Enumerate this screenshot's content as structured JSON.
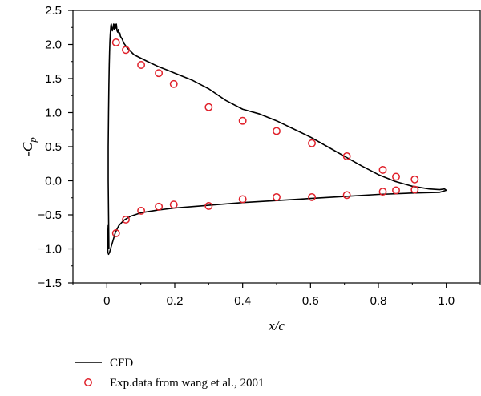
{
  "chart_data": {
    "type": "line",
    "xlabel": "x/c",
    "ylabel": "-C",
    "ylabel_subscript": "p",
    "xlim": [
      -0.1,
      1.1
    ],
    "ylim": [
      -1.5,
      2.5
    ],
    "xticks": [
      0,
      0.2,
      0.4,
      0.6,
      0.8,
      1.0
    ],
    "xtick_labels": [
      "0",
      "0.2",
      "0.4",
      "0.6",
      "0.8",
      "1.0"
    ],
    "yticks": [
      2.5,
      2.0,
      1.5,
      1.0,
      0.5,
      0.0,
      -0.5,
      -1.0,
      -1.5
    ],
    "ytick_labels": [
      "2.5",
      "2.0",
      "1.5",
      "1.0",
      "0.5",
      "0.0",
      "−0.5",
      "−1.0",
      "−1.5"
    ],
    "grid": false,
    "legend_position": "bottom",
    "series": [
      {
        "name": "CFD",
        "kind": "line",
        "color": "#000000",
        "x": [
          0.006,
          0.005,
          0.004,
          0.004,
          0.005,
          0.006,
          0.007,
          0.008,
          0.009,
          0.01,
          0.011,
          0.012,
          0.013,
          0.014,
          0.016,
          0.018,
          0.02,
          0.022,
          0.024,
          0.026,
          0.028,
          0.03,
          0.032,
          0.034,
          0.036,
          0.038,
          0.04,
          0.045,
          0.05,
          0.06,
          0.07,
          0.08,
          0.1,
          0.12,
          0.15,
          0.18,
          0.2,
          0.25,
          0.3,
          0.35,
          0.4,
          0.45,
          0.5,
          0.55,
          0.6,
          0.65,
          0.7,
          0.75,
          0.8,
          0.85,
          0.9,
          0.95,
          0.98,
          0.995,
          1.0,
          0.98,
          0.9,
          0.8,
          0.7,
          0.6,
          0.5,
          0.4,
          0.3,
          0.25,
          0.2,
          0.15,
          0.1,
          0.07,
          0.05,
          0.035,
          0.025,
          0.018,
          0.012,
          0.008,
          0.005,
          0.003,
          0.002,
          0.004
        ],
        "y": [
          -1.0,
          -0.5,
          0.0,
          0.5,
          1.0,
          1.4,
          1.7,
          1.9,
          2.05,
          2.15,
          2.22,
          2.28,
          2.3,
          2.26,
          2.2,
          2.24,
          2.3,
          2.22,
          2.3,
          2.24,
          2.3,
          2.2,
          2.18,
          2.22,
          2.15,
          2.17,
          2.12,
          2.08,
          2.02,
          1.95,
          1.9,
          1.85,
          1.8,
          1.75,
          1.68,
          1.62,
          1.58,
          1.48,
          1.35,
          1.18,
          1.05,
          0.98,
          0.88,
          0.76,
          0.64,
          0.5,
          0.36,
          0.22,
          0.09,
          -0.01,
          -0.08,
          -0.12,
          -0.13,
          -0.12,
          -0.14,
          -0.17,
          -0.18,
          -0.2,
          -0.23,
          -0.26,
          -0.29,
          -0.32,
          -0.36,
          -0.38,
          -0.4,
          -0.43,
          -0.47,
          -0.52,
          -0.58,
          -0.66,
          -0.76,
          -0.88,
          -0.98,
          -1.05,
          -1.08,
          -1.05,
          -0.9,
          -0.65
        ]
      },
      {
        "name": "Exp.data from wang et al., 2001",
        "kind": "scatter",
        "color": "#e0202a",
        "x": [
          0.027,
          0.056,
          0.101,
          0.153,
          0.197,
          0.3,
          0.4,
          0.5,
          0.604,
          0.707,
          0.813,
          0.852,
          0.907,
          0.027,
          0.056,
          0.101,
          0.153,
          0.197,
          0.3,
          0.4,
          0.5,
          0.604,
          0.707,
          0.813,
          0.852,
          0.907
        ],
        "y": [
          2.03,
          1.92,
          1.7,
          1.58,
          1.42,
          1.08,
          0.88,
          0.73,
          0.55,
          0.36,
          0.16,
          0.06,
          0.02,
          -0.77,
          -0.57,
          -0.44,
          -0.38,
          -0.35,
          -0.37,
          -0.27,
          -0.24,
          -0.24,
          -0.21,
          -0.16,
          -0.14,
          -0.13
        ]
      }
    ]
  }
}
